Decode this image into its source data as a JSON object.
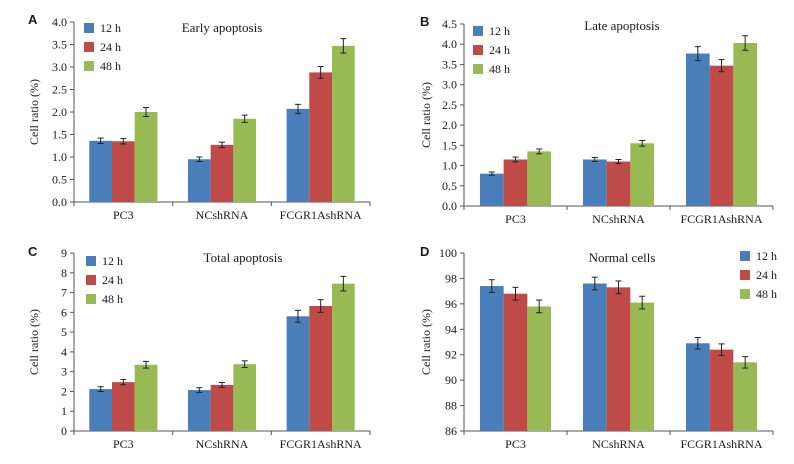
{
  "colors": {
    "12 h": "#4a7ebb",
    "24 h": "#be4b48",
    "48 h": "#98b954"
  },
  "chart_data": [
    {
      "panel": "A",
      "type": "bar",
      "title": "Early apoptosis",
      "ylabel": "Cell ratio (%)",
      "xlabel": "",
      "ylim": [
        0,
        4.0
      ],
      "ytick_step": 0.5,
      "ytick_decimals": 1,
      "legend_position": "top-left",
      "categories": [
        "PC3",
        "NCshRNA",
        "FCGR1AshRNA"
      ],
      "series": [
        {
          "name": "12 h",
          "values": [
            1.36,
            0.95,
            2.07
          ],
          "errors": [
            0.06,
            0.05,
            0.1
          ]
        },
        {
          "name": "24 h",
          "values": [
            1.35,
            1.27,
            2.88
          ],
          "errors": [
            0.06,
            0.06,
            0.13
          ]
        },
        {
          "name": "48 h",
          "values": [
            2.0,
            1.85,
            3.47
          ],
          "errors": [
            0.1,
            0.08,
            0.16
          ]
        }
      ]
    },
    {
      "panel": "B",
      "type": "bar",
      "title": "Late apoptosis",
      "ylabel": "Cell ratio (%)",
      "xlabel": "",
      "ylim": [
        0,
        4.5
      ],
      "ytick_step": 0.5,
      "ytick_decimals": 1,
      "legend_position": "top-left",
      "categories": [
        "PC3",
        "NCshRNA",
        "FCGR1AshRNA"
      ],
      "series": [
        {
          "name": "12 h",
          "values": [
            0.8,
            1.15,
            3.77
          ],
          "errors": [
            0.04,
            0.05,
            0.17
          ]
        },
        {
          "name": "24 h",
          "values": [
            1.15,
            1.1,
            3.47
          ],
          "errors": [
            0.06,
            0.05,
            0.15
          ]
        },
        {
          "name": "48 h",
          "values": [
            1.35,
            1.55,
            4.03
          ],
          "errors": [
            0.06,
            0.07,
            0.18
          ]
        }
      ]
    },
    {
      "panel": "C",
      "type": "bar",
      "title": "Total apoptosis",
      "ylabel": "Cell ratio (%)",
      "xlabel": "",
      "ylim": [
        0,
        9
      ],
      "ytick_step": 1,
      "ytick_decimals": 0,
      "legend_position": "top-left",
      "categories": [
        "PC3",
        "NCshRNA",
        "FCGR1AshRNA"
      ],
      "series": [
        {
          "name": "12 h",
          "values": [
            2.12,
            2.07,
            5.8
          ],
          "errors": [
            0.12,
            0.12,
            0.3
          ]
        },
        {
          "name": "24 h",
          "values": [
            2.47,
            2.33,
            6.32
          ],
          "errors": [
            0.13,
            0.12,
            0.32
          ]
        },
        {
          "name": "48 h",
          "values": [
            3.35,
            3.38,
            7.45
          ],
          "errors": [
            0.17,
            0.17,
            0.37
          ]
        }
      ]
    },
    {
      "panel": "D",
      "type": "bar",
      "title": "Normal cells",
      "ylabel": "Cell ratio (%)",
      "xlabel": "",
      "ylim": [
        86,
        100
      ],
      "ytick_step": 2,
      "ytick_decimals": 0,
      "legend_position": "top-right",
      "categories": [
        "PC3",
        "NCshRNA",
        "FCGR1AshRNA"
      ],
      "series": [
        {
          "name": "12 h",
          "values": [
            97.4,
            97.6,
            92.9
          ],
          "errors": [
            0.5,
            0.5,
            0.45
          ]
        },
        {
          "name": "24 h",
          "values": [
            96.8,
            97.3,
            92.4
          ],
          "errors": [
            0.5,
            0.5,
            0.45
          ]
        },
        {
          "name": "48 h",
          "values": [
            95.8,
            96.1,
            91.4
          ],
          "errors": [
            0.5,
            0.5,
            0.45
          ]
        }
      ]
    }
  ]
}
